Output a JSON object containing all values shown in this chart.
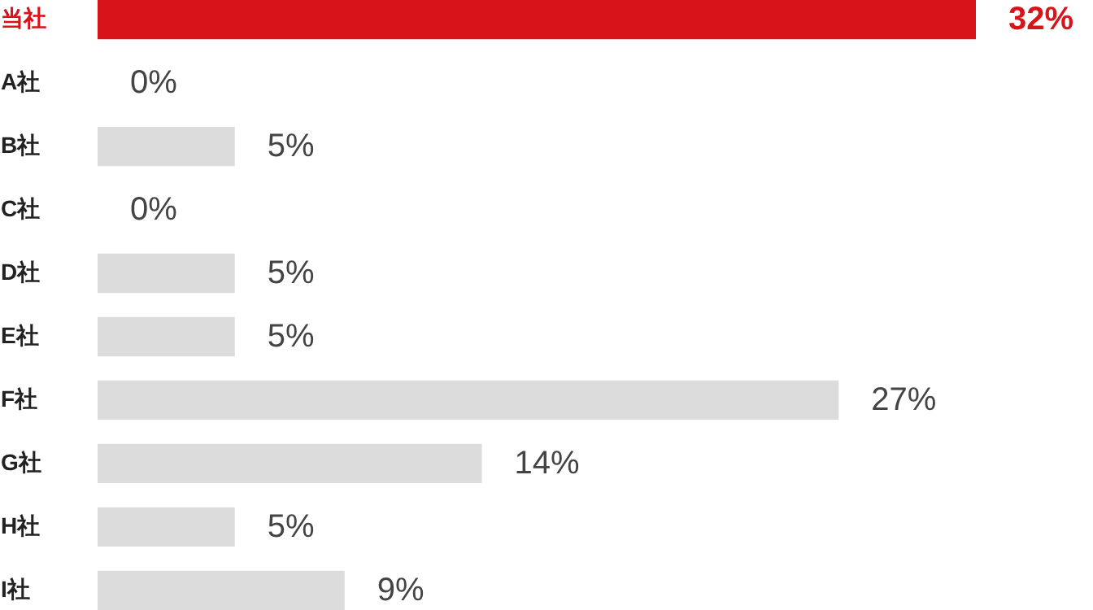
{
  "chart_data": {
    "type": "bar",
    "orientation": "horizontal",
    "categories": [
      "当社",
      "A社",
      "B社",
      "C社",
      "D社",
      "E社",
      "F社",
      "G社",
      "H社",
      "I社"
    ],
    "values": [
      32,
      0,
      5,
      0,
      5,
      5,
      27,
      14,
      5,
      9
    ],
    "colors": [
      "#d7141a",
      "#dcdcdc",
      "#dcdcdc",
      "#dcdcdc",
      "#dcdcdc",
      "#dcdcdc",
      "#dcdcdc",
      "#dcdcdc",
      "#dcdcdc",
      "#dcdcdc"
    ],
    "value_labels": [
      "32%",
      "0%",
      "5%",
      "0%",
      "5%",
      "5%",
      "27%",
      "14%",
      "5%",
      "9%"
    ],
    "grid": false
  }
}
